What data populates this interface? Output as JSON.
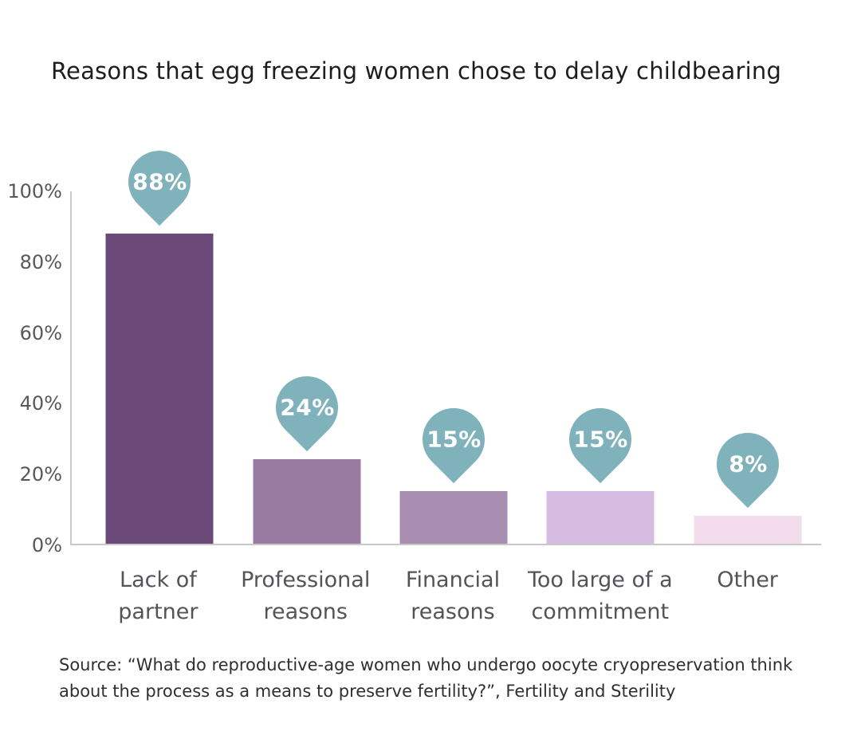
{
  "title": "Reasons that egg freezing women chose to delay childbearing",
  "chart_data": {
    "type": "bar",
    "title": "Reasons that egg freezing women chose to delay childbearing",
    "categories": [
      "Lack of\npartner",
      "Professional\nreasons",
      "Financial\nreasons",
      "Too large of a\ncommitment",
      "Other"
    ],
    "values": [
      88,
      24,
      15,
      15,
      8
    ],
    "value_labels": [
      "88%",
      "24%",
      "15%",
      "15%",
      "8%"
    ],
    "ylim": [
      0,
      100
    ],
    "yticks": [
      "0%",
      "20%",
      "40%",
      "60%",
      "80%",
      "100%"
    ],
    "grid": false,
    "legend": false,
    "xlabel": "",
    "ylabel": "",
    "bar_colors": [
      "#6b4a79",
      "#997ba2",
      "#a88fb1",
      "#d6bce0",
      "#f3dcec"
    ],
    "callout_color": "#7fb2bb",
    "axis_line_color": "#c9c9c9"
  },
  "source_note": "Source: “What do reproductive-age women who undergo oocyte cryopreservation think\nabout the process as a means to preserve fertility?”, Fertility and Sterility"
}
